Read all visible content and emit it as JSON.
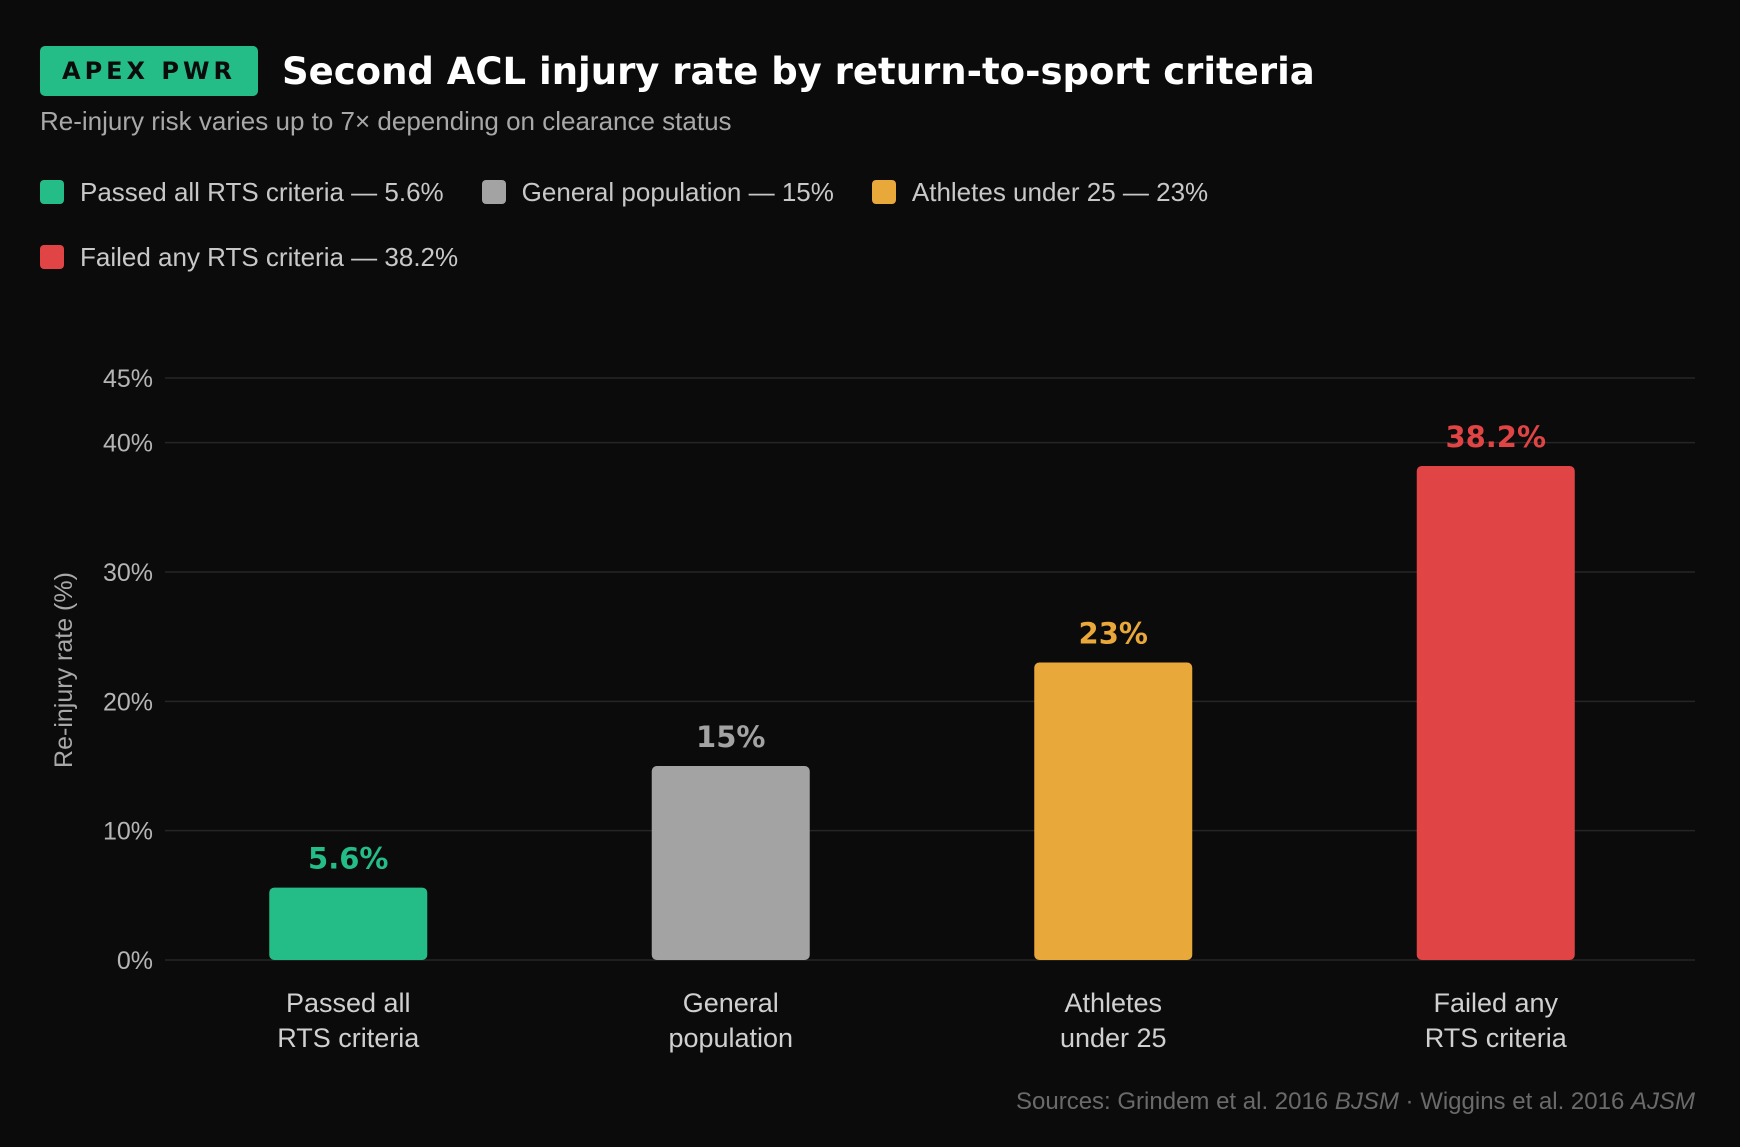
{
  "header": {
    "brand": "APEX PWR",
    "title": "Second ACL injury rate by return-to-sport criteria",
    "subtitle": "Re-injury risk varies up to 7× depending on clearance status"
  },
  "legend": {
    "rows": [
      [
        {
          "label": "Passed all RTS criteria — 5.6%",
          "color": "#25bd87"
        },
        {
          "label": "General population — 15%",
          "color": "#a3a3a3"
        },
        {
          "label": "Athletes under 25 — 23%",
          "color": "#e8a83a"
        }
      ],
      [
        {
          "label": "Failed any RTS criteria — 38.2%",
          "color": "#e04444"
        }
      ]
    ]
  },
  "chart_data": {
    "type": "bar",
    "title": "Second ACL injury rate by return-to-sport criteria",
    "ylabel": "Re-injury rate (%)",
    "ylim": [
      0,
      45
    ],
    "yticks": [
      0,
      10,
      20,
      30,
      40,
      45
    ],
    "grid": true,
    "legend_position": "top-left",
    "categories": [
      [
        "Passed all",
        "RTS criteria"
      ],
      [
        "General",
        "population"
      ],
      [
        "Athletes",
        "under 25"
      ],
      [
        "Failed any",
        "RTS criteria"
      ]
    ],
    "values": [
      5.6,
      15,
      23,
      38.2
    ],
    "value_labels": [
      "5.6%",
      "15%",
      "23%",
      "38.2%"
    ],
    "colors": [
      "#25bd87",
      "#a3a3a3",
      "#e8a83a",
      "#e04444"
    ]
  },
  "footer": {
    "prefix": "Sources: Grindem et al. 2016 ",
    "journal1": "BJSM",
    "separator": "  ·  Wiggins et al. 2016 ",
    "journal2": "AJSM"
  }
}
